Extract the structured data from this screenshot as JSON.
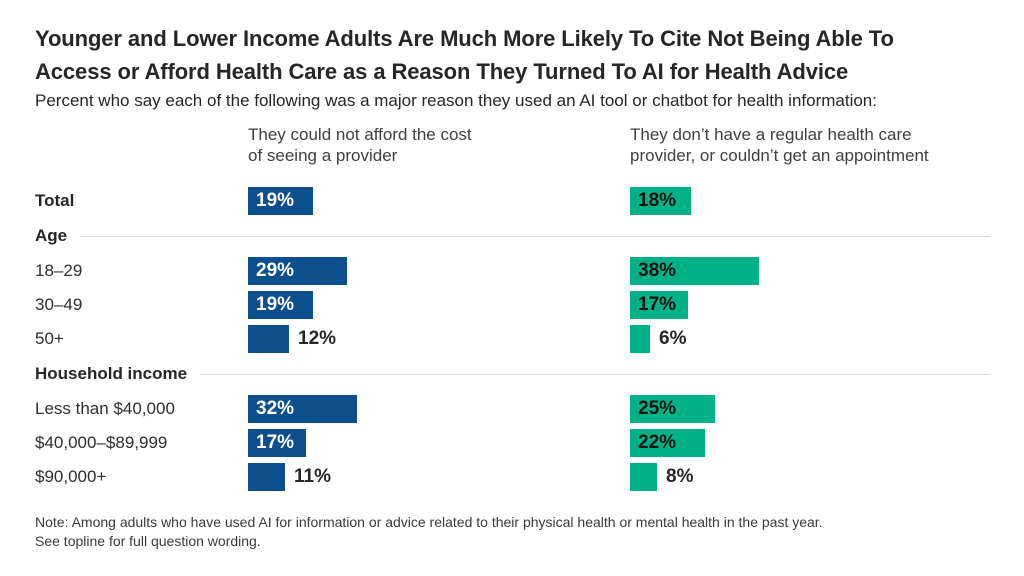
{
  "page": {
    "title": "Younger and Lower Income Adults Are Much More Likely To Cite Not Being Able To Access or Afford Health Care as a Reason They Turned To AI for Health Advice",
    "subtitle": "Percent who say each of the following was a major reason they used an AI tool or chatbot for health information:",
    "note_line1": "Note: Among adults who have used AI for information or advice related to their physical health or mental health in the past year.",
    "note_line2": "See topline for full question wording."
  },
  "chart_data": {
    "type": "bar",
    "orientation": "horizontal",
    "unit": "%",
    "xlim": [
      0,
      40
    ],
    "grid": false,
    "legend_position": "column-headers",
    "series": [
      {
        "name": "They could not afford the cost of seeing a provider",
        "color": "#0d4e8c",
        "inside_label_color": "#ffffff"
      },
      {
        "name": "They don’t have a regular health care provider, or couldn’t get an appointment",
        "color": "#00b187",
        "inside_label_color": "#111111"
      }
    ],
    "rows": [
      {
        "type": "data",
        "label": "Total",
        "bold": true,
        "values": [
          19,
          18
        ]
      },
      {
        "type": "section",
        "label": "Age"
      },
      {
        "type": "data",
        "label": "18–29",
        "values": [
          29,
          38
        ]
      },
      {
        "type": "data",
        "label": "30–49",
        "values": [
          19,
          17
        ]
      },
      {
        "type": "data",
        "label": "50+",
        "values": [
          12,
          6
        ]
      },
      {
        "type": "section",
        "label": "Household income"
      },
      {
        "type": "data",
        "label": "Less than $40,000",
        "values": [
          32,
          25
        ]
      },
      {
        "type": "data",
        "label": "$40,000–$89,999",
        "values": [
          17,
          22
        ]
      },
      {
        "type": "data",
        "label": "$90,000+",
        "values": [
          11,
          8
        ]
      }
    ]
  }
}
